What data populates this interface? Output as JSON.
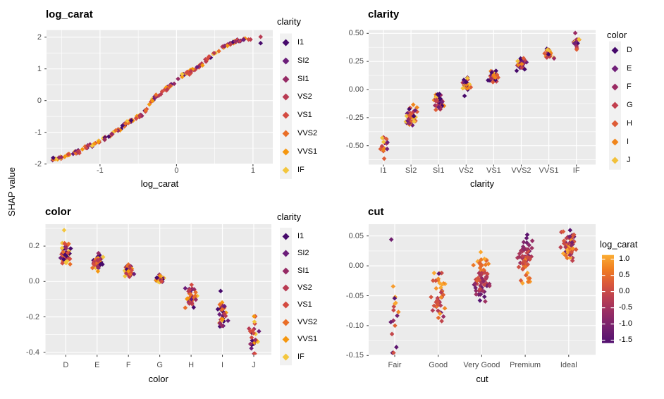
{
  "ylabel": "SHAP value",
  "colors": {
    "background": "#FFFFFF",
    "panel_bg": "#EBEBEB",
    "grid": "#FFFFFF",
    "tick_text": "#4D4D4D",
    "text": "#000000",
    "legend_key_bg": "#F1F1F1",
    "axis_tick": "#333333"
  },
  "palettes": {
    "clarity": {
      "labels": [
        "I1",
        "SI2",
        "SI1",
        "VS2",
        "VS1",
        "VVS2",
        "VVS1",
        "IF"
      ],
      "colors": [
        "#46096B",
        "#6B1D79",
        "#952A64",
        "#B83A52",
        "#D44B41",
        "#E96E27",
        "#F5970F",
        "#F3C63D"
      ]
    },
    "color": {
      "labels": [
        "D",
        "E",
        "F",
        "G",
        "H",
        "I",
        "J"
      ],
      "colors": [
        "#46096B",
        "#701F78",
        "#9A2B63",
        "#C23F4E",
        "#DE5C37",
        "#F0851B",
        "#F2C13B"
      ]
    },
    "log_carat_gradient": {
      "domain": [
        -1.6,
        1.15
      ],
      "stops": [
        [
          0,
          "#531170"
        ],
        [
          0.18,
          "#75216E"
        ],
        [
          0.36,
          "#9A2E63"
        ],
        [
          0.52,
          "#BC4050"
        ],
        [
          0.68,
          "#DB5A3A"
        ],
        [
          0.84,
          "#F07E21"
        ],
        [
          1,
          "#FBAC33"
        ]
      ]
    }
  },
  "chart_data": [
    {
      "id": "log_carat",
      "type": "scatter",
      "title": "log_carat",
      "xlabel": "log_carat",
      "x_type": "continuous",
      "x_domain": [
        -1.7,
        1.26
      ],
      "x_ticks": {
        "labels": [
          "-1",
          "0",
          "1"
        ],
        "values": [
          -1,
          0,
          1
        ]
      },
      "x_minor": [
        -1.5,
        -0.5,
        0.5
      ],
      "y_domain": [
        -2.0,
        2.22
      ],
      "y_ticks": {
        "labels": [
          "2",
          "1",
          "0",
          "-1",
          "-2"
        ],
        "values": [
          2,
          1,
          0,
          -1,
          -2
        ]
      },
      "y_minor": [
        1.5,
        0.5,
        -0.5,
        -1.5
      ],
      "legend": {
        "title": "clarity",
        "type": "discrete",
        "palette": "clarity"
      },
      "point_palette": "clarity",
      "curve": {
        "n": 210,
        "y_sd": 0.05,
        "x_range": [
          -1.62,
          0.96
        ],
        "anchors": [
          [
            -1.62,
            -1.85
          ],
          [
            -1.52,
            -1.8
          ],
          [
            -1.42,
            -1.71
          ],
          [
            -1.3,
            -1.62
          ],
          [
            -1.18,
            -1.48
          ],
          [
            -1.05,
            -1.34
          ],
          [
            -0.95,
            -1.22
          ],
          [
            -0.85,
            -1.06
          ],
          [
            -0.74,
            -0.9
          ],
          [
            -0.64,
            -0.68
          ],
          [
            -0.55,
            -0.57
          ],
          [
            -0.46,
            -0.46
          ],
          [
            -0.39,
            -0.28
          ],
          [
            -0.34,
            -0.06
          ],
          [
            -0.27,
            0.13
          ],
          [
            -0.18,
            0.28
          ],
          [
            -0.1,
            0.42
          ],
          [
            -0.02,
            0.6
          ],
          [
            0.06,
            0.78
          ],
          [
            0.16,
            0.88
          ],
          [
            0.26,
            1.0
          ],
          [
            0.36,
            1.2
          ],
          [
            0.46,
            1.44
          ],
          [
            0.56,
            1.6
          ],
          [
            0.66,
            1.75
          ],
          [
            0.76,
            1.86
          ],
          [
            0.86,
            1.91
          ],
          [
            0.95,
            1.93
          ]
        ],
        "clumps": [
          -1.5,
          -1.28,
          -1.02,
          -0.82,
          -0.63,
          -0.47,
          -0.3,
          -0.1,
          0.07,
          0.2,
          0.45,
          0.62,
          0.78
        ],
        "outliers": [
          [
            1.1,
            2.01
          ],
          [
            1.1,
            1.81
          ]
        ]
      }
    },
    {
      "id": "clarity",
      "type": "scatter",
      "title": "clarity",
      "xlabel": "clarity",
      "x_type": "discrete",
      "categories": [
        "I1",
        "SI2",
        "SI1",
        "VS2",
        "VS1",
        "VVS2",
        "VVS1",
        "IF"
      ],
      "y_domain": [
        -0.668,
        0.527
      ],
      "y_ticks": {
        "labels": [
          "0.50",
          "0.25",
          "0.00",
          "-0.25",
          "-0.50"
        ],
        "values": [
          0.5,
          0.25,
          0,
          -0.25,
          -0.5
        ]
      },
      "y_minor": [
        0.375,
        0.125,
        -0.125,
        -0.375,
        -0.625
      ],
      "legend": {
        "title": "color",
        "type": "discrete",
        "palette": "color"
      },
      "point_palette": "color",
      "clusters": [
        {
          "category": "I1",
          "center": -0.49,
          "sd": 0.038,
          "n": 13,
          "range": [
            -0.6,
            -0.39
          ],
          "xw": 9,
          "outliers": [
            {
              "y": -0.615,
              "ci": 4
            }
          ]
        },
        {
          "category": "SI2",
          "center": -0.23,
          "sd": 0.042,
          "n": 46,
          "range": [
            -0.325,
            -0.135
          ],
          "xw": 10
        },
        {
          "category": "SI1",
          "center": -0.105,
          "sd": 0.034,
          "n": 42,
          "range": [
            -0.19,
            -0.025
          ],
          "xw": 10
        },
        {
          "category": "VS2",
          "center": 0.045,
          "sd": 0.027,
          "n": 30,
          "range": [
            -0.02,
            0.107
          ],
          "xw": 10,
          "outliers": [
            {
              "y": -0.057,
              "ci": 0
            }
          ]
        },
        {
          "category": "VS1",
          "center": 0.115,
          "sd": 0.028,
          "n": 32,
          "range": [
            0.052,
            0.183
          ],
          "xw": 10
        },
        {
          "category": "VVS2",
          "center": 0.23,
          "sd": 0.03,
          "n": 30,
          "range": [
            0.167,
            0.295
          ],
          "xw": 10
        },
        {
          "category": "VVS1",
          "center": 0.325,
          "sd": 0.03,
          "n": 24,
          "range": [
            0.262,
            0.388
          ],
          "xw": 9
        },
        {
          "category": "IF",
          "center": 0.425,
          "sd": 0.04,
          "n": 15,
          "range": [
            0.345,
            0.503
          ],
          "xw": 8
        }
      ]
    },
    {
      "id": "color",
      "type": "scatter",
      "title": "color",
      "xlabel": "color",
      "x_type": "discrete",
      "categories": [
        "D",
        "E",
        "F",
        "G",
        "H",
        "I",
        "J"
      ],
      "y_domain": [
        -0.414,
        0.324
      ],
      "y_ticks": {
        "labels": [
          "0.2",
          "0.0",
          "-0.2",
          "-0.4"
        ],
        "values": [
          0.2,
          0,
          -0.2,
          -0.4
        ]
      },
      "y_minor": [
        0.3,
        0.1,
        -0.1,
        -0.3
      ],
      "legend": {
        "title": "clarity",
        "type": "discrete",
        "palette": "clarity"
      },
      "point_palette": "clarity",
      "clusters": [
        {
          "category": "D",
          "center": 0.15,
          "sd": 0.03,
          "n": 48,
          "range": [
            0.077,
            0.24
          ],
          "xw": 10,
          "outliers": [
            {
              "y": 0.29,
              "ci": 7
            }
          ]
        },
        {
          "category": "E",
          "center": 0.105,
          "sd": 0.024,
          "n": 44,
          "range": [
            0.056,
            0.16
          ],
          "xw": 10
        },
        {
          "category": "F",
          "center": 0.062,
          "sd": 0.019,
          "n": 40,
          "range": [
            0.022,
            0.104
          ],
          "xw": 10
        },
        {
          "category": "G",
          "center": 0.012,
          "sd": 0.012,
          "n": 26,
          "range": [
            -0.017,
            0.04
          ],
          "xw": 9
        },
        {
          "category": "H",
          "center": -0.08,
          "sd": 0.029,
          "n": 34,
          "range": [
            -0.153,
            -0.007
          ],
          "xw": 10
        },
        {
          "category": "I",
          "center": -0.18,
          "sd": 0.038,
          "n": 32,
          "range": [
            -0.263,
            -0.1
          ],
          "xw": 10,
          "outliers": [
            {
              "y": -0.054,
              "ci": 0
            }
          ]
        },
        {
          "category": "J",
          "center": -0.3,
          "sd": 0.047,
          "n": 26,
          "range": [
            -0.408,
            -0.197
          ],
          "xw": 10
        }
      ]
    },
    {
      "id": "cut",
      "type": "scatter",
      "title": "cut",
      "xlabel": "cut",
      "x_type": "discrete",
      "categories": [
        "Fair",
        "Good",
        "Very Good",
        "Premium",
        "Ideal"
      ],
      "y_domain": [
        -0.149,
        0.07
      ],
      "y_ticks": {
        "labels": [
          "0.05",
          "0.00",
          "-0.05",
          "-0.10",
          "-0.15"
        ],
        "values": [
          0.05,
          0,
          -0.05,
          -0.1,
          -0.15
        ]
      },
      "y_minor": [
        0.025,
        -0.025,
        -0.075,
        -0.125
      ],
      "legend": {
        "title": "log_carat",
        "type": "colorbar",
        "palette": "log_carat_gradient",
        "ticks": {
          "labels": [
            "1.0",
            "0.5",
            "0.0",
            "-0.5",
            "-1.0",
            "-1.5"
          ],
          "values": [
            1,
            0.5,
            0,
            -0.5,
            -1,
            -1.5
          ]
        }
      },
      "color_by": "log_carat",
      "clusters": [
        {
          "category": "Fair",
          "center": -0.085,
          "sd": 0.032,
          "n": 15,
          "range": [
            -0.146,
            -0.02
          ],
          "xw": 12,
          "carat_rule": {
            "a": -0.35,
            "b": 0.15,
            "noise": 0.75
          },
          "outliers": [
            {
              "y": 0.044,
              "carat": -1.2
            },
            {
              "y": -0.1455,
              "carat": 0.1
            }
          ]
        },
        {
          "category": "Good",
          "center": -0.055,
          "sd": 0.021,
          "n": 40,
          "range": [
            -0.107,
            -0.012
          ],
          "xw": 14,
          "carat_rule": {
            "a": 0.25,
            "b": 0.3,
            "noise": 0.55
          },
          "outliers": [
            {
              "y": -0.013,
              "carat": -1.3
            }
          ]
        },
        {
          "category": "Very Good",
          "center": -0.024,
          "sd": 0.02,
          "n": 70,
          "range": [
            -0.077,
            0.023
          ],
          "xw": 16,
          "carat_rule": {
            "a": -0.25,
            "b": 0.63,
            "noise": 0.3
          }
        },
        {
          "category": "Premium",
          "center": 0.013,
          "sd": 0.019,
          "n": 62,
          "range": [
            -0.029,
            0.052
          ],
          "xw": 15,
          "carat_rule": {
            "a": -0.15,
            "b": -0.58,
            "noise": 0.32
          }
        },
        {
          "category": "Ideal",
          "center": 0.033,
          "sd": 0.013,
          "n": 62,
          "range": [
            -0.003,
            0.066
          ],
          "xw": 14,
          "carat_rule": {
            "a": -0.1,
            "b": -0.35,
            "noise": 0.7
          }
        }
      ]
    }
  ]
}
